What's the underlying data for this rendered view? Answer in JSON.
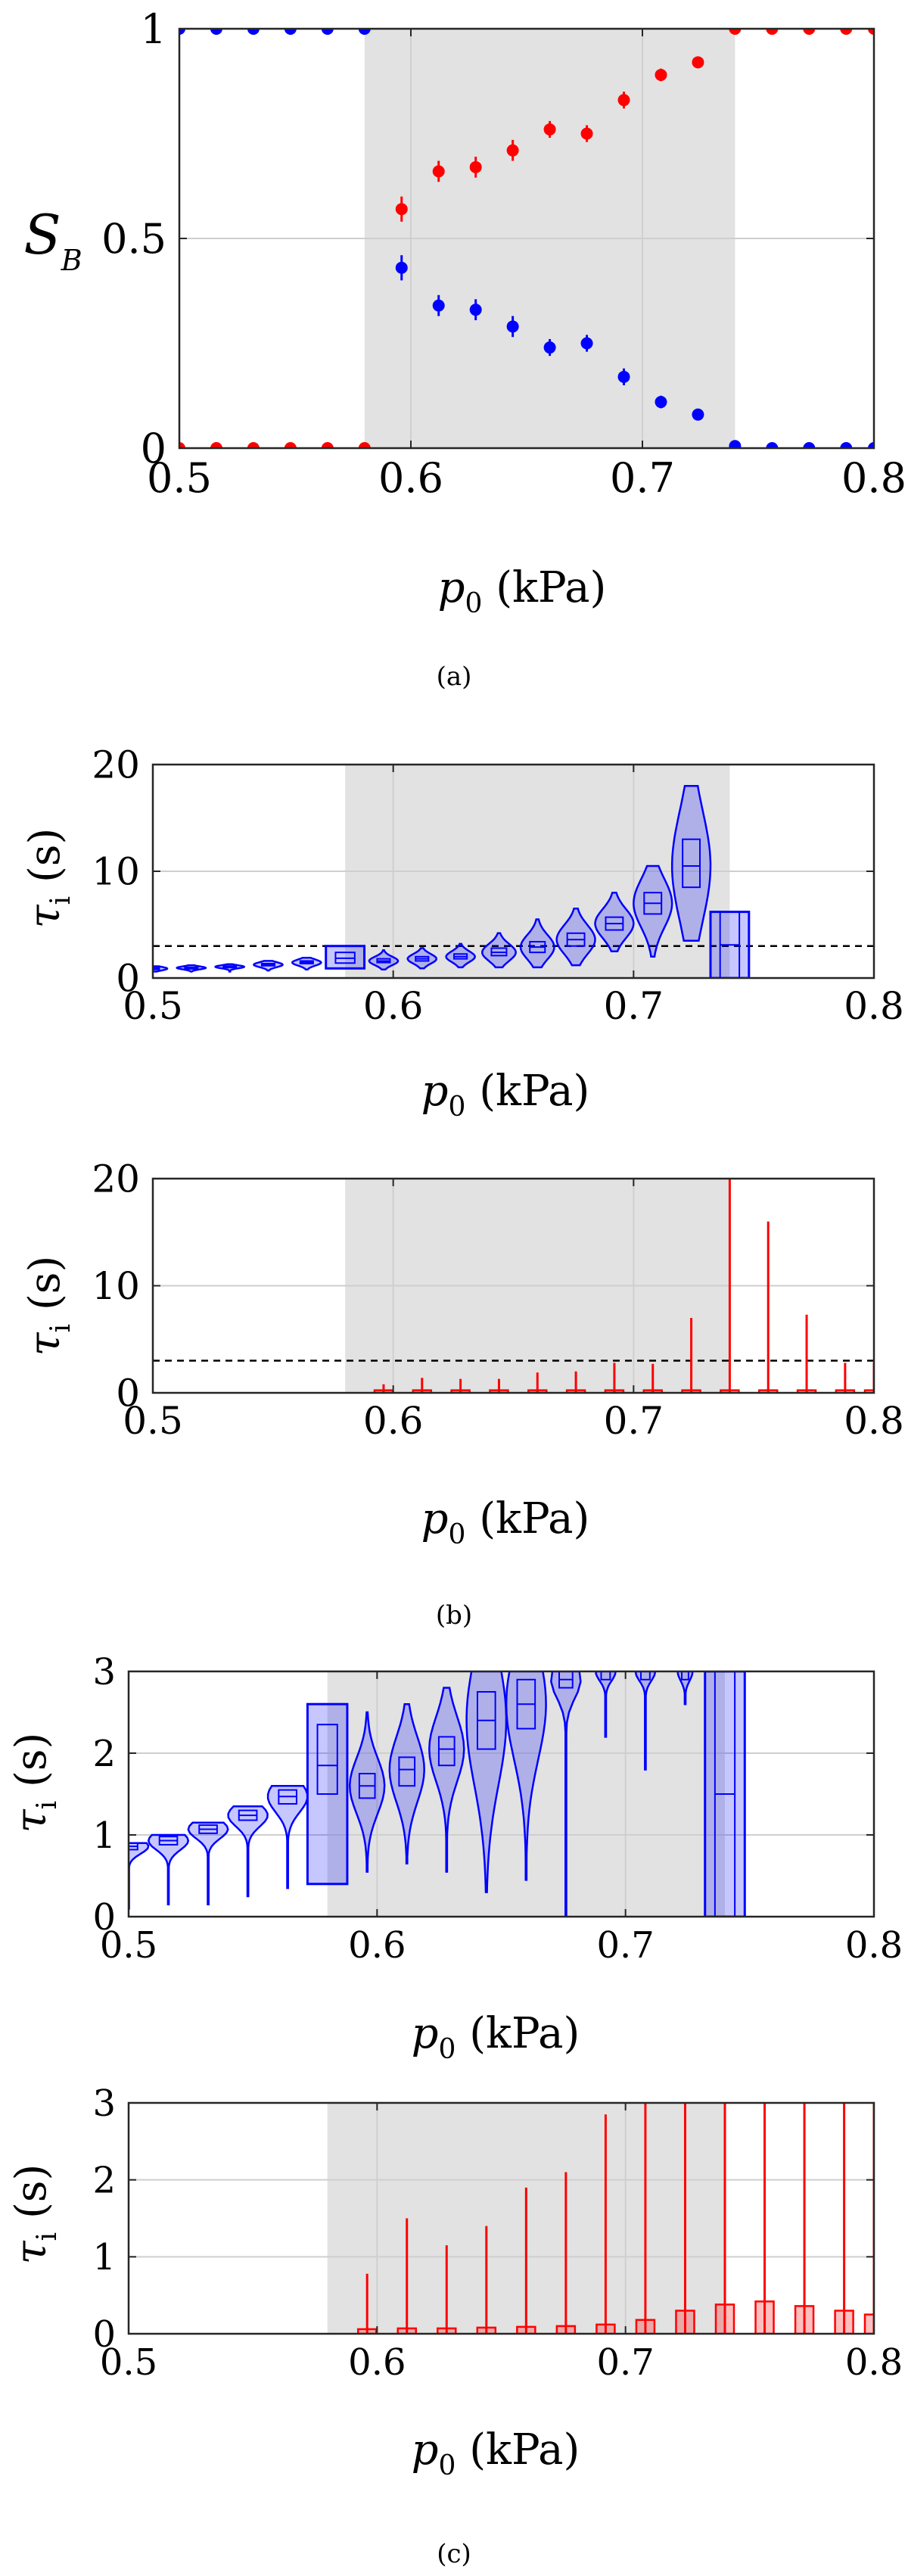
{
  "chart_data": [
    {
      "type": "scatter",
      "panel": "(a)",
      "title": "",
      "xlabel": "p0 (kPa)",
      "ylabel": "S_B",
      "xlim": [
        0.5,
        0.8
      ],
      "ylim": [
        0,
        1
      ],
      "xticks": [
        0.5,
        0.6,
        0.7,
        0.8
      ],
      "yticks": [
        0,
        0.5,
        1
      ],
      "xtick_labels": [
        "0.5",
        "0.6",
        "0.7",
        "0.8"
      ],
      "ytick_labels": [
        "0",
        "0.5",
        "1"
      ],
      "grid": true,
      "shaded_region": [
        0.58,
        0.74
      ],
      "series": [
        {
          "color": "#0000ff",
          "x": [
            0.5,
            0.516,
            0.532,
            0.548,
            0.564,
            0.58,
            0.596,
            0.612,
            0.628,
            0.644,
            0.66,
            0.676,
            0.692,
            0.708,
            0.724,
            0.74,
            0.756,
            0.772,
            0.788,
            0.8
          ],
          "y": [
            1,
            1,
            1,
            1,
            1,
            1,
            0.43,
            0.34,
            0.33,
            0.29,
            0.24,
            0.25,
            0.17,
            0.11,
            0.08,
            0.005,
            0,
            0,
            0,
            0
          ],
          "err": [
            0,
            0,
            0,
            0,
            0,
            0,
            0.03,
            0.025,
            0.025,
            0.025,
            0.02,
            0.02,
            0.02,
            0.015,
            0.01,
            0,
            0,
            0,
            0,
            0
          ]
        },
        {
          "color": "#ff0000",
          "x": [
            0.5,
            0.516,
            0.532,
            0.548,
            0.564,
            0.58,
            0.596,
            0.612,
            0.628,
            0.644,
            0.66,
            0.676,
            0.692,
            0.708,
            0.724,
            0.74,
            0.756,
            0.772,
            0.788,
            0.8
          ],
          "y": [
            0,
            0,
            0,
            0,
            0,
            0,
            0.57,
            0.66,
            0.67,
            0.71,
            0.76,
            0.75,
            0.83,
            0.89,
            0.92,
            1,
            1,
            1,
            1,
            1
          ],
          "err": [
            0,
            0,
            0,
            0,
            0,
            0,
            0.03,
            0.025,
            0.025,
            0.025,
            0.02,
            0.02,
            0.02,
            0.015,
            0.01,
            0,
            0,
            0,
            0,
            0
          ]
        }
      ]
    },
    {
      "type": "violin",
      "panel": "(b) top",
      "xlabel": "p0 (kPa)",
      "ylabel": "τi (s)",
      "xlim": [
        0.5,
        0.8
      ],
      "ylim": [
        0,
        20
      ],
      "xticks": [
        0.5,
        0.6,
        0.7,
        0.8
      ],
      "yticks": [
        0,
        10,
        20
      ],
      "xtick_labels": [
        "0.5",
        "0.6",
        "0.7",
        "0.8"
      ],
      "ytick_labels": [
        "0",
        "10",
        "20"
      ],
      "grid": true,
      "shaded_region": [
        0.58,
        0.74
      ],
      "dashed_line_y": 3,
      "color": "#0000ff",
      "violins": [
        {
          "x": 0.5,
          "lo": 0.6,
          "hi": 1.1,
          "q1": 0.8,
          "med": 0.88,
          "q3": 0.95,
          "w": 0.006
        },
        {
          "x": 0.516,
          "lo": 0.6,
          "hi": 1.2,
          "q1": 0.88,
          "med": 0.95,
          "q3": 1.0,
          "w": 0.006
        },
        {
          "x": 0.532,
          "lo": 0.6,
          "hi": 1.3,
          "q1": 1.0,
          "med": 1.05,
          "q3": 1.12,
          "w": 0.006
        },
        {
          "x": 0.548,
          "lo": 0.7,
          "hi": 1.6,
          "q1": 1.15,
          "med": 1.25,
          "q3": 1.35,
          "w": 0.006
        },
        {
          "x": 0.564,
          "lo": 0.8,
          "hi": 1.9,
          "q1": 1.35,
          "med": 1.45,
          "q3": 1.6,
          "w": 0.006
        },
        {
          "x": 0.58,
          "lo": 0.9,
          "hi": 3.0,
          "q1": 1.4,
          "med": 1.85,
          "q3": 2.4,
          "w": 0.008,
          "box": true
        },
        {
          "x": 0.596,
          "lo": 0.8,
          "hi": 2.6,
          "q1": 1.45,
          "med": 1.6,
          "q3": 1.8,
          "w": 0.006
        },
        {
          "x": 0.612,
          "lo": 0.9,
          "hi": 2.8,
          "q1": 1.6,
          "med": 1.8,
          "q3": 2.0,
          "w": 0.006
        },
        {
          "x": 0.628,
          "lo": 1.0,
          "hi": 3.2,
          "q1": 1.8,
          "med": 2.0,
          "q3": 2.25,
          "w": 0.006
        },
        {
          "x": 0.644,
          "lo": 1.0,
          "hi": 4.2,
          "q1": 2.1,
          "med": 2.4,
          "q3": 2.8,
          "w": 0.007
        },
        {
          "x": 0.66,
          "lo": 1.0,
          "hi": 5.5,
          "q1": 2.4,
          "med": 2.9,
          "q3": 3.4,
          "w": 0.007
        },
        {
          "x": 0.676,
          "lo": 1.2,
          "hi": 6.5,
          "q1": 3.0,
          "med": 3.6,
          "q3": 4.2,
          "w": 0.008
        },
        {
          "x": 0.692,
          "lo": 2.5,
          "hi": 8.0,
          "q1": 4.5,
          "med": 5.1,
          "q3": 5.7,
          "w": 0.008
        },
        {
          "x": 0.708,
          "lo": 2.0,
          "hi": 10.5,
          "q1": 6.0,
          "med": 7.0,
          "q3": 8.0,
          "w": 0.008
        },
        {
          "x": 0.724,
          "lo": 3.5,
          "hi": 18.0,
          "q1": 8.5,
          "med": 10.5,
          "q3": 13.0,
          "w": 0.008
        },
        {
          "x": 0.74,
          "lo": 0,
          "hi": 6.2,
          "q1": 0,
          "med": 3.1,
          "q3": 6.2,
          "w": 0.008,
          "box": true
        }
      ]
    },
    {
      "type": "violin",
      "panel": "(b) bottom",
      "xlabel": "p0 (kPa)",
      "ylabel": "τi (s)",
      "xlim": [
        0.5,
        0.8
      ],
      "ylim": [
        0,
        20
      ],
      "xticks": [
        0.5,
        0.6,
        0.7,
        0.8
      ],
      "yticks": [
        0,
        10,
        20
      ],
      "xtick_labels": [
        "0.5",
        "0.6",
        "0.7",
        "0.8"
      ],
      "ytick_labels": [
        "0",
        "10",
        "20"
      ],
      "grid": true,
      "shaded_region": [
        0.58,
        0.74
      ],
      "dashed_line_y": 3,
      "color": "#ff0000",
      "spikes": [
        {
          "x": 0.596,
          "hi": 0.8
        },
        {
          "x": 0.612,
          "hi": 1.4
        },
        {
          "x": 0.628,
          "hi": 1.3
        },
        {
          "x": 0.644,
          "hi": 1.3
        },
        {
          "x": 0.66,
          "hi": 1.9
        },
        {
          "x": 0.676,
          "hi": 2.0
        },
        {
          "x": 0.692,
          "hi": 2.8
        },
        {
          "x": 0.708,
          "hi": 2.7
        },
        {
          "x": 0.724,
          "hi": 7.0
        },
        {
          "x": 0.74,
          "hi": 20
        },
        {
          "x": 0.756,
          "hi": 16
        },
        {
          "x": 0.772,
          "hi": 7.3
        },
        {
          "x": 0.788,
          "hi": 2.8
        },
        {
          "x": 0.8,
          "hi": 2.8
        }
      ]
    },
    {
      "type": "violin",
      "panel": "(c) top",
      "xlabel": "p0 (kPa)",
      "ylabel": "τi (s)",
      "xlim": [
        0.5,
        0.8
      ],
      "ylim": [
        0,
        3
      ],
      "xticks": [
        0.5,
        0.6,
        0.7,
        0.8
      ],
      "yticks": [
        0,
        1,
        2,
        3
      ],
      "xtick_labels": [
        "0.5",
        "0.6",
        "0.7",
        "0.8"
      ],
      "ytick_labels": [
        "0",
        "1",
        "2",
        "3"
      ],
      "grid": true,
      "shaded_region": [
        0.58,
        0.74
      ],
      "color": "#0000ff",
      "violins": [
        {
          "x": 0.5,
          "lo": 0.1,
          "hi": 0.9,
          "q1": 0.82,
          "med": 0.86,
          "q3": 0.9,
          "w": 0.008
        },
        {
          "x": 0.516,
          "lo": 0.15,
          "hi": 1.0,
          "q1": 0.88,
          "med": 0.93,
          "q3": 0.98,
          "w": 0.008
        },
        {
          "x": 0.532,
          "lo": 0.15,
          "hi": 1.15,
          "q1": 1.02,
          "med": 1.07,
          "q3": 1.12,
          "w": 0.008
        },
        {
          "x": 0.548,
          "lo": 0.25,
          "hi": 1.35,
          "q1": 1.18,
          "med": 1.24,
          "q3": 1.3,
          "w": 0.008
        },
        {
          "x": 0.564,
          "lo": 0.35,
          "hi": 1.6,
          "q1": 1.38,
          "med": 1.47,
          "q3": 1.55,
          "w": 0.008
        },
        {
          "x": 0.58,
          "lo": 0.4,
          "hi": 2.6,
          "q1": 1.5,
          "med": 1.85,
          "q3": 2.35,
          "w": 0.008,
          "box": true
        },
        {
          "x": 0.596,
          "lo": 0.55,
          "hi": 2.5,
          "q1": 1.45,
          "med": 1.6,
          "q3": 1.75,
          "w": 0.007
        },
        {
          "x": 0.612,
          "lo": 0.65,
          "hi": 2.6,
          "q1": 1.6,
          "med": 1.8,
          "q3": 1.95,
          "w": 0.007
        },
        {
          "x": 0.628,
          "lo": 0.55,
          "hi": 2.8,
          "q1": 1.85,
          "med": 2.05,
          "q3": 2.2,
          "w": 0.007
        },
        {
          "x": 0.644,
          "lo": 0.3,
          "hi": 3.0,
          "q1": 2.05,
          "med": 2.4,
          "q3": 2.75,
          "w": 0.008
        },
        {
          "x": 0.66,
          "lo": 0.45,
          "hi": 3.0,
          "q1": 2.3,
          "med": 2.6,
          "q3": 2.9,
          "w": 0.008
        },
        {
          "x": 0.676,
          "lo": 0,
          "hi": 3.0,
          "q1": 2.8,
          "med": 2.9,
          "q3": 3.0,
          "w": 0.006
        },
        {
          "x": 0.692,
          "lo": 2.2,
          "hi": 3.0,
          "q1": 2.9,
          "med": 3.0,
          "q3": 3.0,
          "w": 0.004
        },
        {
          "x": 0.708,
          "lo": 1.8,
          "hi": 3.0,
          "q1": 2.9,
          "med": 3.0,
          "q3": 3.0,
          "w": 0.004
        },
        {
          "x": 0.724,
          "lo": 2.6,
          "hi": 3.0,
          "q1": 2.9,
          "med": 3.0,
          "q3": 3.0,
          "w": 0.003
        },
        {
          "x": 0.74,
          "lo": 0,
          "hi": 3.0,
          "q1": 0,
          "med": 1.5,
          "q3": 3.0,
          "w": 0.008,
          "box": true
        }
      ]
    },
    {
      "type": "violin",
      "panel": "(c) bottom",
      "xlabel": "p0 (kPa)",
      "ylabel": "τi (s)",
      "xlim": [
        0.5,
        0.8
      ],
      "ylim": [
        0,
        3
      ],
      "xticks": [
        0.5,
        0.6,
        0.7,
        0.8
      ],
      "yticks": [
        0,
        1,
        2,
        3
      ],
      "xtick_labels": [
        "0.5",
        "0.6",
        "0.7",
        "0.8"
      ],
      "ytick_labels": [
        "0",
        "1",
        "2",
        "3"
      ],
      "grid": true,
      "shaded_region": [
        0.58,
        0.74
      ],
      "color": "#ff0000",
      "spikes": [
        {
          "x": 0.596,
          "hi": 0.78,
          "box": 0.06
        },
        {
          "x": 0.612,
          "hi": 1.5,
          "box": 0.07
        },
        {
          "x": 0.628,
          "hi": 1.15,
          "box": 0.07
        },
        {
          "x": 0.644,
          "hi": 1.4,
          "box": 0.08
        },
        {
          "x": 0.66,
          "hi": 1.9,
          "box": 0.09
        },
        {
          "x": 0.676,
          "hi": 2.1,
          "box": 0.1
        },
        {
          "x": 0.692,
          "hi": 2.85,
          "box": 0.12
        },
        {
          "x": 0.708,
          "hi": 3.0,
          "box": 0.18
        },
        {
          "x": 0.724,
          "hi": 3.0,
          "box": 0.3
        },
        {
          "x": 0.74,
          "hi": 3.0,
          "box": 0.38
        },
        {
          "x": 0.756,
          "hi": 3.0,
          "box": 0.42
        },
        {
          "x": 0.772,
          "hi": 3.0,
          "box": 0.36
        },
        {
          "x": 0.788,
          "hi": 3.0,
          "box": 0.3
        },
        {
          "x": 0.8,
          "hi": 3.0,
          "box": 0.25
        }
      ]
    }
  ],
  "labels": {
    "ylabel_a_main": "S",
    "ylabel_a_sub": "B",
    "ylabel_tau_main": "τ",
    "ylabel_tau_sub": "i",
    "ylabel_tau_unit": " (s)",
    "xlabel_main": "p",
    "xlabel_sub": "0",
    "xlabel_unit": " (kPa)"
  },
  "captions": {
    "a": "(a)",
    "b": "(b)",
    "c": "(c)"
  }
}
